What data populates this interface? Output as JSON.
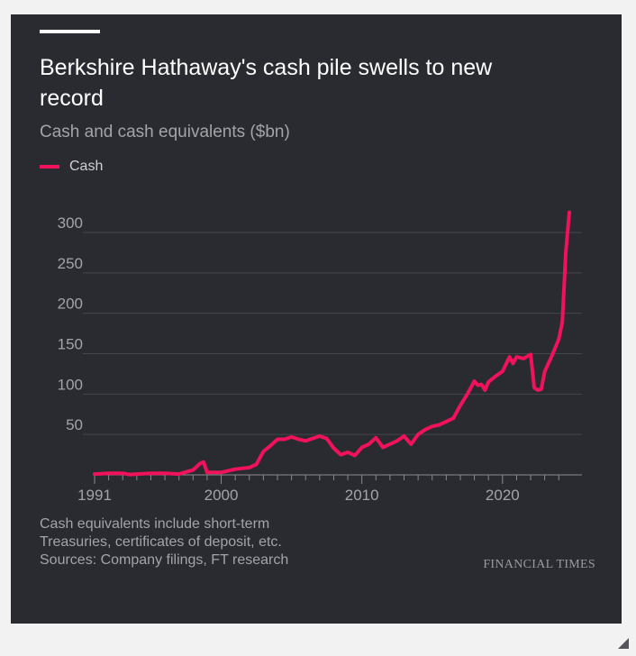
{
  "title": "Berkshire Hathaway's cash pile swells to new record",
  "subtitle": "Cash and cash equivalents ($bn)",
  "legend": {
    "label": "Cash"
  },
  "notes": [
    "Cash equivalents include short-term",
    "Treasuries, certificates of deposit, etc.",
    "Sources: Company filings, FT research"
  ],
  "brand": "FINANCIAL TIMES",
  "colors": {
    "background": "#2a2b30",
    "series": "#f0125a",
    "grid": "#45464b",
    "text": "#a3a3a8"
  },
  "chart_data": {
    "type": "line",
    "title": "Berkshire Hathaway's cash pile swells to new record",
    "ylabel": "Cash and cash equivalents ($bn)",
    "xlim": [
      1991,
      2024.75
    ],
    "ylim": [
      0,
      330
    ],
    "yticks": [
      50,
      100,
      150,
      200,
      250,
      300
    ],
    "xticks": [
      1991,
      2000,
      2010,
      2020
    ],
    "grid": "horizontal",
    "legend_position": "top-left",
    "series": [
      {
        "name": "Cash",
        "x": [
          1991,
          1992,
          1993,
          1993.5,
          1994,
          1995,
          1996,
          1997,
          1998,
          1998.5,
          1998.75,
          1999,
          1999.5,
          2000,
          2001,
          2002,
          2002.5,
          2003,
          2003.5,
          2004,
          2004.5,
          2005,
          2005.5,
          2006,
          2006.5,
          2007,
          2007.5,
          2008,
          2008.5,
          2009,
          2009.5,
          2010,
          2010.5,
          2011,
          2011.5,
          2012,
          2012.5,
          2013,
          2013.5,
          2014,
          2014.5,
          2015,
          2015.5,
          2016,
          2016.5,
          2017,
          2017.5,
          2018,
          2018.25,
          2018.5,
          2018.75,
          2019,
          2019.5,
          2020,
          2020.5,
          2020.75,
          2021,
          2021.5,
          2022,
          2022.25,
          2022.5,
          2022.75,
          2023,
          2023.5,
          2024,
          2024.25,
          2024.5,
          2024.75
        ],
        "values": [
          1,
          2,
          2,
          0.5,
          1,
          2,
          2,
          1,
          6,
          14,
          16,
          3,
          3,
          3,
          7,
          9,
          13,
          29,
          36,
          44,
          44,
          47,
          44,
          42,
          45,
          48,
          45,
          33,
          25,
          28,
          24,
          34,
          38,
          46,
          34,
          38,
          42,
          48,
          38,
          50,
          56,
          60,
          62,
          66,
          70,
          86,
          100,
          116,
          111,
          112,
          105,
          115,
          122,
          128,
          146,
          138,
          146,
          144,
          149,
          108,
          105,
          106,
          128,
          147,
          168,
          189,
          276,
          325
        ]
      }
    ]
  }
}
